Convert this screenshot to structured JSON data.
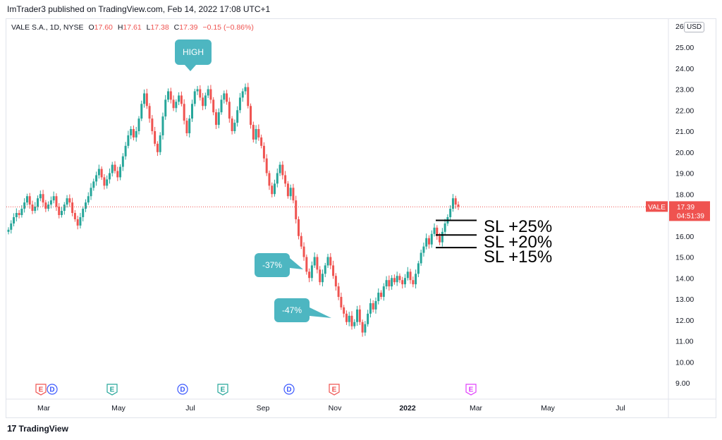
{
  "header": {
    "publish_line": "ImTrader3 published on TradingView.com, Feb 14, 2022 17:08 UTC+1"
  },
  "legend": {
    "symbol": "VALE S.A., 1D, NYSE",
    "open_label": "O",
    "open": "17.60",
    "high_label": "H",
    "high": "17.61",
    "low_label": "L",
    "low": "17.38",
    "close_label": "C",
    "close": "17.39",
    "change": "−0.15 (−0.86%)"
  },
  "currency": "USD",
  "footer": {
    "brand": "TradingView",
    "logo": "tradingview-logo"
  },
  "colors": {
    "up": "#26a69a",
    "down": "#ef5350",
    "callout": "#4db6c1",
    "price_line": "#ef5350",
    "grid": "#f0f3fa"
  },
  "chart_data": {
    "type": "candlestick",
    "symbol": "VALE",
    "y_ticks": [
      "9.00",
      "10.00",
      "11.00",
      "12.00",
      "13.00",
      "14.00",
      "15.00",
      "16.00",
      "17.00",
      "18.00",
      "19.00",
      "20.00",
      "21.00",
      "22.00",
      "23.00",
      "24.00",
      "25.00"
    ],
    "y_top_partial": "26",
    "ylim": [
      8.5,
      26.0
    ],
    "x_ticks": [
      "Mar",
      "May",
      "Jul",
      "Sep",
      "Nov",
      "2022",
      "Mar",
      "May",
      "Jul"
    ],
    "last_price": {
      "name": "VALE",
      "value": 17.39,
      "countdown": "04:51:39"
    },
    "candles_close": [
      16.3,
      16.6,
      16.9,
      17.1,
      17.0,
      17.3,
      17.6,
      17.9,
      17.5,
      17.2,
      17.4,
      17.8,
      18.0,
      17.6,
      17.3,
      17.5,
      17.7,
      17.9,
      17.4,
      17.0,
      17.2,
      17.5,
      17.8,
      17.6,
      17.1,
      16.8,
      16.5,
      16.9,
      17.3,
      17.6,
      17.9,
      18.3,
      18.6,
      18.9,
      19.2,
      18.8,
      18.4,
      18.7,
      19.0,
      19.4,
      19.1,
      18.8,
      19.3,
      19.8,
      20.3,
      20.8,
      21.1,
      20.7,
      21.0,
      21.6,
      22.3,
      22.8,
      22.2,
      21.6,
      21.0,
      20.4,
      20.0,
      20.8,
      21.7,
      22.5,
      22.9,
      22.5,
      22.1,
      22.4,
      22.7,
      22.3,
      21.5,
      20.9,
      21.6,
      22.3,
      22.9,
      23.0,
      22.6,
      22.2,
      22.7,
      23.0,
      22.5,
      21.9,
      21.3,
      21.9,
      22.5,
      22.8,
      22.4,
      21.6,
      21.0,
      21.4,
      22.0,
      22.6,
      22.9,
      23.1,
      22.2,
      21.3,
      20.6,
      21.1,
      20.7,
      20.3,
      19.7,
      19.0,
      18.4,
      18.0,
      18.5,
      19.0,
      19.4,
      18.9,
      18.5,
      17.9,
      18.3,
      17.7,
      16.8,
      16.0,
      15.5,
      15.0,
      14.3,
      14.0,
      14.6,
      15.0,
      14.4,
      13.8,
      14.2,
      14.6,
      15.0,
      14.6,
      14.1,
      13.6,
      13.1,
      12.6,
      12.3,
      11.9,
      12.2,
      11.7,
      11.9,
      12.5,
      11.9,
      11.4,
      11.8,
      12.3,
      12.8,
      12.5,
      12.9,
      13.3,
      13.1,
      13.6,
      13.9,
      13.6,
      14.0,
      13.8,
      14.1,
      13.9,
      13.7,
      14.0,
      14.3,
      13.9,
      13.7,
      14.2,
      14.7,
      15.2,
      15.5,
      15.9,
      15.6,
      16.1,
      16.4,
      16.0,
      15.7,
      16.2,
      16.6,
      16.9,
      17.3,
      17.8,
      17.5,
      17.4
    ],
    "callouts": [
      {
        "text": "HIGH"
      },
      {
        "text": "-37%"
      },
      {
        "text": "-47%"
      }
    ],
    "stop_levels": [
      {
        "label": "SL +25%",
        "value": 16.75
      },
      {
        "label": "SL +20%",
        "value": 16.05
      },
      {
        "label": "SL +15%",
        "value": 15.45
      }
    ],
    "events": [
      {
        "letter": "E",
        "color": "#ef5350"
      },
      {
        "letter": "D",
        "color": "#3d5afe"
      },
      {
        "letter": "E",
        "color": "#26a69a"
      },
      {
        "letter": "D",
        "color": "#3d5afe"
      },
      {
        "letter": "E",
        "color": "#26a69a"
      },
      {
        "letter": "D",
        "color": "#3d5afe"
      },
      {
        "letter": "E",
        "color": "#ef5350"
      },
      {
        "letter": "E",
        "color": "#e040fb"
      }
    ]
  }
}
